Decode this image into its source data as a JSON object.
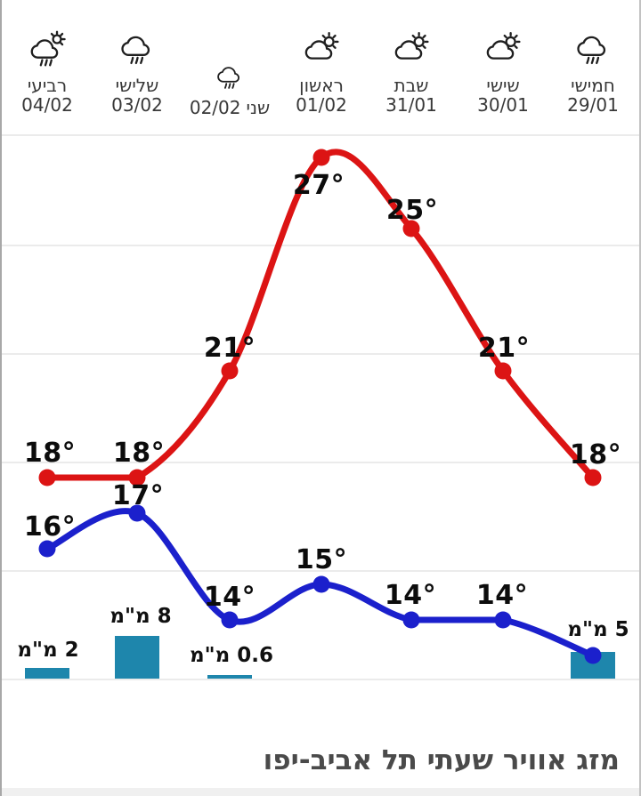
{
  "title": "מזג אוויר שעתי תל אביב-יפו",
  "days": [
    {
      "name": "חמישי",
      "date": "29/01",
      "icon": "rain-icon"
    },
    {
      "name": "שישי",
      "date": "30/01",
      "icon": "sun-behind-cloud-icon"
    },
    {
      "name": "שבת",
      "date": "31/01",
      "icon": "sun-behind-cloud-icon"
    },
    {
      "name": "ראשון",
      "date": "01/02",
      "icon": "sun-behind-cloud-icon"
    },
    {
      "name": "שני",
      "date": "02/02",
      "icon": "rain-icon"
    },
    {
      "name": "שלישי",
      "date": "03/02",
      "icon": "rain-icon"
    },
    {
      "name": "רביעי",
      "date": "04/02",
      "icon": "sun-shower-icon"
    }
  ],
  "chart_data": {
    "type": "line",
    "layout_direction": "rtl",
    "grid": true,
    "categories": [
      "29/01",
      "30/01",
      "31/01",
      "01/02",
      "02/02",
      "03/02",
      "04/02"
    ],
    "series": [
      {
        "name": "high_temp_c",
        "color": "#dc1414",
        "values": [
          18,
          21,
          25,
          27,
          21,
          18,
          18
        ]
      },
      {
        "name": "low_temp_c",
        "color": "#1b20cc",
        "values": [
          13,
          14,
          14,
          15,
          14,
          17,
          16
        ]
      },
      {
        "name": "precip_mm",
        "color": "#1e86ac",
        "values": [
          5,
          null,
          null,
          null,
          0.6,
          8,
          2
        ]
      }
    ],
    "labels": {
      "high": [
        "18°",
        "21°",
        "25°",
        "27°",
        "21°",
        "18°",
        "18°"
      ],
      "low": [
        "",
        "14°",
        "14°",
        "15°",
        "14°",
        "17°",
        "16°"
      ],
      "precip": [
        "5 מ\"מ",
        "",
        "",
        "",
        "0.6 מ\"מ",
        "8 מ\"מ",
        "2 מ\"מ"
      ]
    }
  }
}
